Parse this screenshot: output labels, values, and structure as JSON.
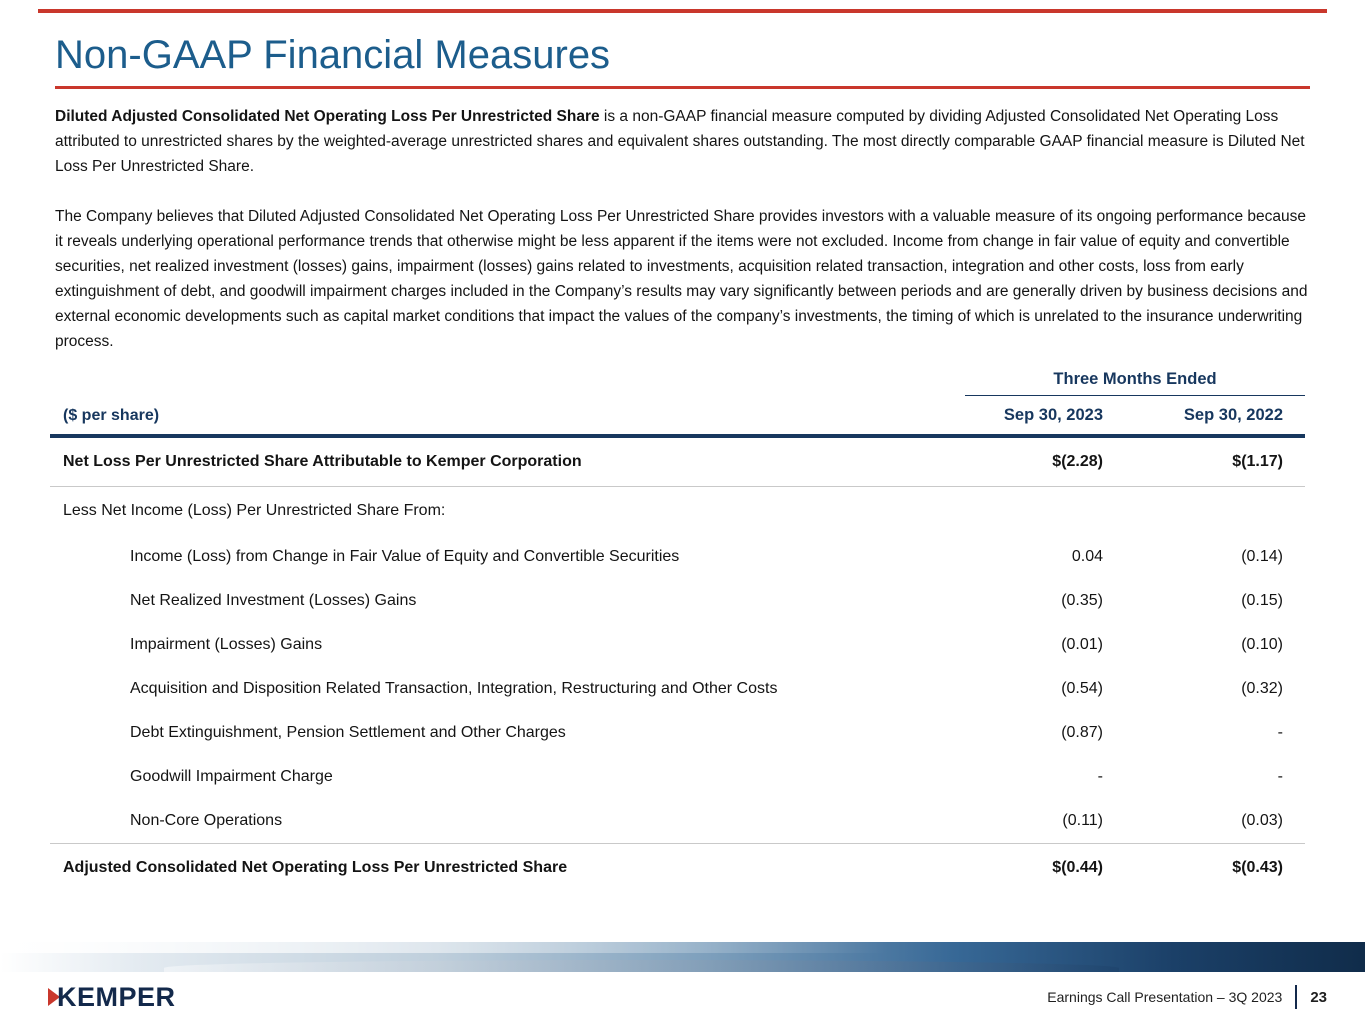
{
  "slide": {
    "title": "Non-GAAP Financial Measures",
    "intro": {
      "bold_lead": "Diluted Adjusted Consolidated Net Operating Loss Per Unrestricted Share",
      "paragraph1_rest": " is a non-GAAP financial measure computed by dividing Adjusted Consolidated Net Operating Loss attributed to unrestricted shares by the weighted-average unrestricted shares and equivalent shares outstanding. The most directly comparable GAAP financial measure is Diluted Net Loss Per Unrestricted Share.",
      "paragraph2": "The Company believes that Diluted Adjusted Consolidated Net Operating Loss Per Unrestricted Share provides investors with a valuable measure of its ongoing performance because it reveals underlying operational performance trends that otherwise might be less apparent if the items were not excluded. Income from change in fair value of equity and convertible securities, net realized investment (losses) gains, impairment (losses) gains related to investments, acquisition related transaction, integration and other costs, loss from early extinguishment of debt, and goodwill impairment charges included in the Company’s results may vary significantly between periods and are generally driven by business decisions and external economic developments such as capital market conditions that impact the values of the company’s investments, the timing of which is unrelated to the insurance underwriting process."
    },
    "table": {
      "group_header": "Three Months Ended",
      "row_header": "($ per share)",
      "col_headers": [
        "Sep 30, 2023",
        "Sep 30, 2022"
      ],
      "rows": [
        {
          "type": "bold",
          "label": "Net Loss Per Unrestricted Share Attributable to Kemper Corporation",
          "sep_30_2023": "$(2.28)",
          "sep_30_2022": "$(1.17)"
        },
        {
          "type": "section",
          "label": "Less Net Income (Loss) Per Unrestricted Share From:",
          "sep_30_2023": "",
          "sep_30_2022": ""
        },
        {
          "type": "indent",
          "label": "Income (Loss) from Change in Fair Value of Equity and Convertible Securities",
          "sep_30_2023": "0.04",
          "sep_30_2022": "(0.14)"
        },
        {
          "type": "indent",
          "label": "Net Realized Investment (Losses) Gains",
          "sep_30_2023": "(0.35)",
          "sep_30_2022": "(0.15)"
        },
        {
          "type": "indent",
          "label": "Impairment (Losses) Gains",
          "sep_30_2023": "(0.01)",
          "sep_30_2022": "(0.10)"
        },
        {
          "type": "indent",
          "label": "Acquisition and Disposition Related Transaction, Integration, Restructuring and Other Costs",
          "sep_30_2023": "(0.54)",
          "sep_30_2022": "(0.32)"
        },
        {
          "type": "indent",
          "label": "Debt Extinguishment, Pension Settlement and Other Charges",
          "sep_30_2023": "(0.87)",
          "sep_30_2022": "-"
        },
        {
          "type": "indent",
          "label": "Goodwill Impairment Charge",
          "sep_30_2023": "-",
          "sep_30_2022": "-"
        },
        {
          "type": "indent",
          "label": "Non-Core Operations",
          "sep_30_2023": "(0.11)",
          "sep_30_2022": "(0.03)"
        },
        {
          "type": "bold",
          "label": "Adjusted Consolidated Net Operating Loss Per Unrestricted Share",
          "sep_30_2023": "$(0.44)",
          "sep_30_2022": "$(0.43)"
        }
      ]
    },
    "footer": {
      "logo": "KEMPER",
      "caption": "Earnings Call Presentation – 3Q 2023",
      "page_number": "23"
    },
    "colors": {
      "title_blue": "#1C5D8C",
      "accent_red": "#C9372C",
      "table_navy": "#17375E",
      "divider_gray": "#C9C9C9",
      "logo_navy": "#13294B"
    }
  }
}
